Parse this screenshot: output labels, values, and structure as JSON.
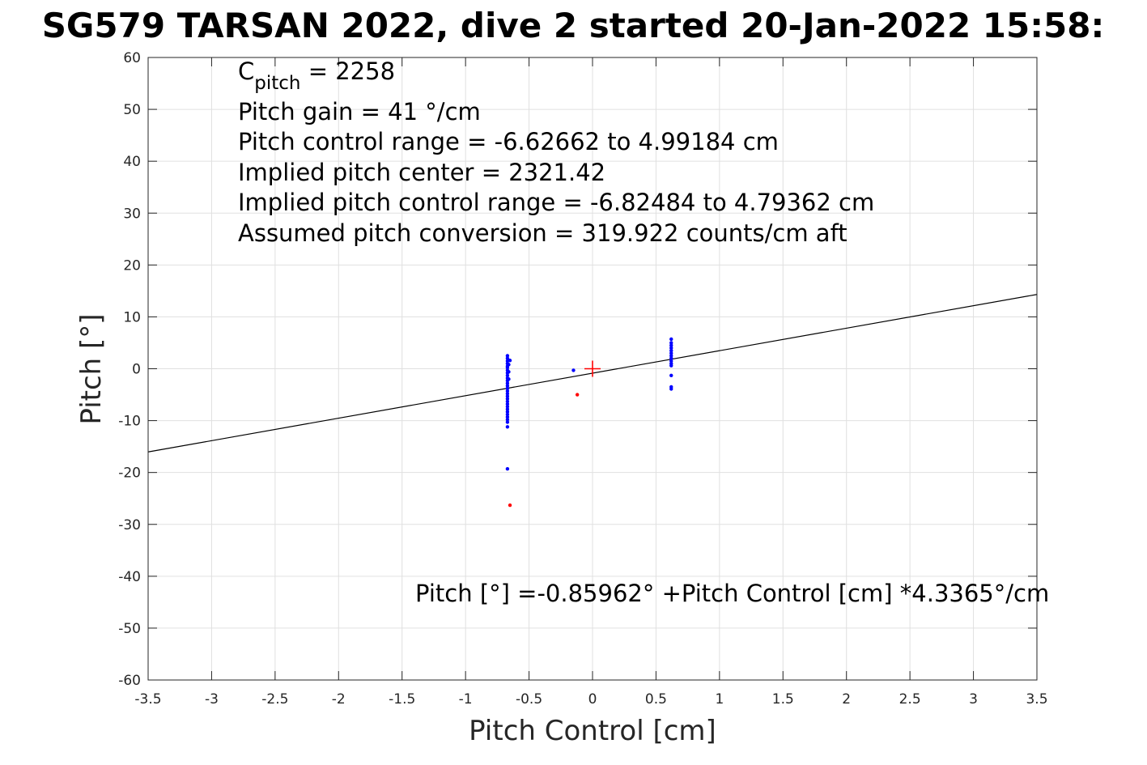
{
  "chart_data": {
    "type": "scatter",
    "title": "SG579 TARSAN 2022, dive 2 started 20-Jan-2022 15:58:",
    "xlabel": "Pitch Control [cm]",
    "ylabel": "Pitch [°]",
    "xlim": [
      -3.5,
      3.5
    ],
    "ylim": [
      -60,
      60
    ],
    "x_ticks": [
      "-3.5",
      "-3",
      "-2.5",
      "-2",
      "-1.5",
      "-1",
      "-0.5",
      "0",
      "0.5",
      "1",
      "1.5",
      "2",
      "2.5",
      "3",
      "3.5"
    ],
    "y_ticks": [
      "60",
      "50",
      "40",
      "30",
      "20",
      "10",
      "0",
      "-10",
      "-20",
      "-30",
      "-40",
      "-50",
      "-60"
    ],
    "grid": true,
    "colors": {
      "points": "#0000ff",
      "outliers": "#ff0000",
      "fit_line": "#000000",
      "center_marker": "#ff0000",
      "grid": "#e0e0e0",
      "axes": "#262626"
    },
    "annotations": {
      "c_pitch_main": "C",
      "c_pitch_sub": "pitch",
      "c_pitch_value": " = 2258",
      "pitch_gain": "Pitch gain = 41 °/cm",
      "pitch_control_range": "Pitch control range = -6.62662 to 4.99184 cm",
      "implied_center": "Implied pitch center = 2321.42",
      "implied_range": "Implied pitch control range = -6.82484 to 4.79362 cm",
      "conversion": "Assumed pitch conversion = 319.922 counts/cm aft",
      "fit_equation": "Pitch [°] =-0.85962° +Pitch Control [cm] *4.3365°/cm"
    },
    "fit_line": {
      "intercept": -0.85962,
      "slope": 4.3365
    },
    "center_marker": {
      "x": 0,
      "y": 0
    },
    "series": [
      {
        "name": "",
        "color": "#0000ff",
        "points": [
          [
            -0.67,
            2.5
          ],
          [
            -0.67,
            2.0
          ],
          [
            -0.67,
            1.5
          ],
          [
            -0.67,
            1.0
          ],
          [
            -0.67,
            0.5
          ],
          [
            -0.67,
            0.2
          ],
          [
            -0.67,
            -0.3
          ],
          [
            -0.67,
            -0.8
          ],
          [
            -0.67,
            -1.3
          ],
          [
            -0.67,
            -1.8
          ],
          [
            -0.67,
            -2.3
          ],
          [
            -0.67,
            -2.8
          ],
          [
            -0.67,
            -3.3
          ],
          [
            -0.67,
            -3.8
          ],
          [
            -0.67,
            -4.3
          ],
          [
            -0.67,
            -4.8
          ],
          [
            -0.67,
            -5.3
          ],
          [
            -0.67,
            -5.8
          ],
          [
            -0.67,
            -6.3
          ],
          [
            -0.67,
            -6.8
          ],
          [
            -0.67,
            -7.3
          ],
          [
            -0.67,
            -7.8
          ],
          [
            -0.67,
            -8.3
          ],
          [
            -0.67,
            -8.8
          ],
          [
            -0.67,
            -9.3
          ],
          [
            -0.67,
            -9.8
          ],
          [
            -0.67,
            -10.3
          ],
          [
            -0.67,
            -11.2
          ],
          [
            -0.67,
            -19.3
          ],
          [
            -0.65,
            1.6
          ],
          [
            -0.66,
            0.8
          ],
          [
            -0.66,
            -0.6
          ],
          [
            -0.66,
            -2.0
          ],
          [
            -0.15,
            -0.3
          ],
          [
            0.62,
            5.7
          ],
          [
            0.62,
            5.0
          ],
          [
            0.62,
            4.5
          ],
          [
            0.62,
            4.0
          ],
          [
            0.62,
            3.5
          ],
          [
            0.62,
            3.0
          ],
          [
            0.62,
            2.5
          ],
          [
            0.62,
            2.0
          ],
          [
            0.62,
            1.5
          ],
          [
            0.62,
            1.0
          ],
          [
            0.62,
            0.6
          ],
          [
            0.62,
            -1.3
          ],
          [
            0.62,
            -3.5
          ],
          [
            0.62,
            -3.9
          ]
        ]
      },
      {
        "name": "",
        "color": "#ff0000",
        "points": [
          [
            -0.65,
            -26.3
          ],
          [
            -0.12,
            -5.0
          ]
        ]
      }
    ]
  }
}
